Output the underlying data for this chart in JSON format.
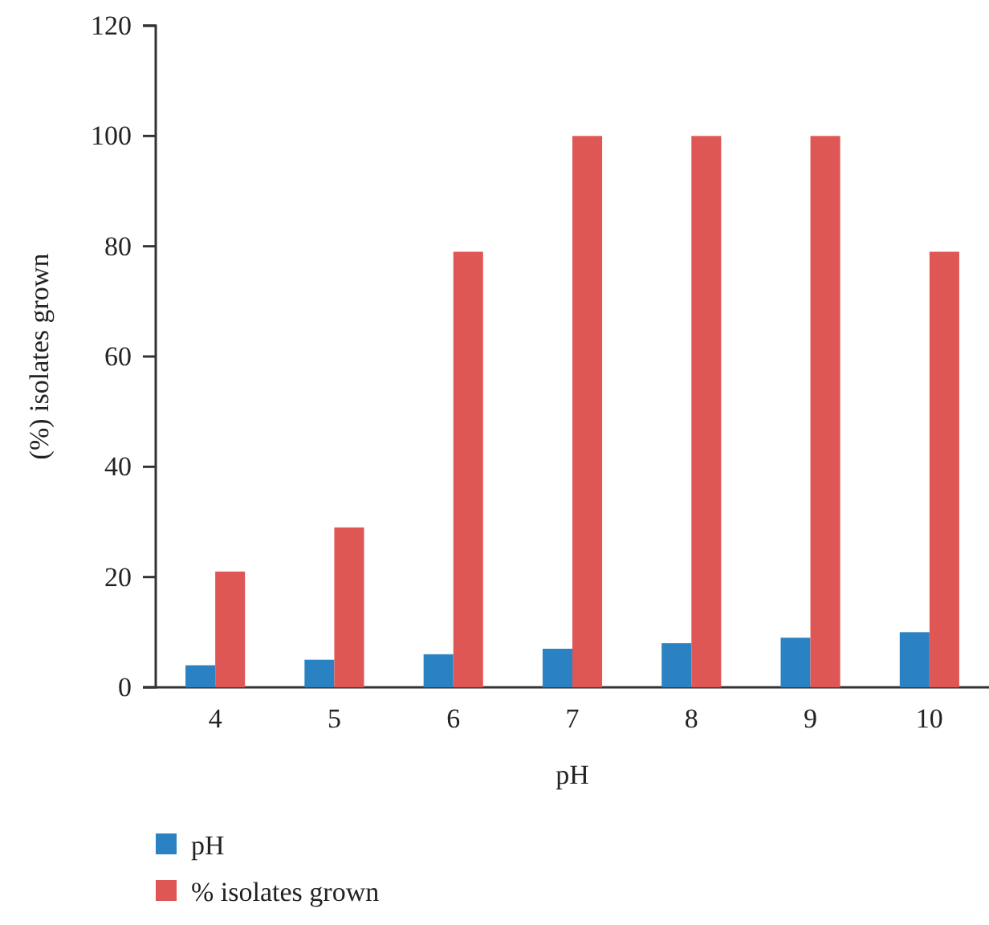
{
  "chart_data": {
    "type": "bar",
    "xlabel": "pH",
    "ylabel": "(%) isolates grown",
    "categories": [
      "4",
      "5",
      "6",
      "7",
      "8",
      "9",
      "10"
    ],
    "series": [
      {
        "name": "pH",
        "color": "#2a82c2",
        "values": [
          4,
          5,
          6,
          7,
          8,
          9,
          10
        ]
      },
      {
        "name": "% isolates grown",
        "color": "#df5755",
        "values": [
          21,
          29,
          79,
          100,
          100,
          100,
          79
        ]
      }
    ],
    "ylim": [
      0,
      120
    ],
    "yticks": [
      0,
      20,
      40,
      60,
      80,
      100,
      120
    ],
    "grid": false,
    "legend": "bottom left"
  }
}
